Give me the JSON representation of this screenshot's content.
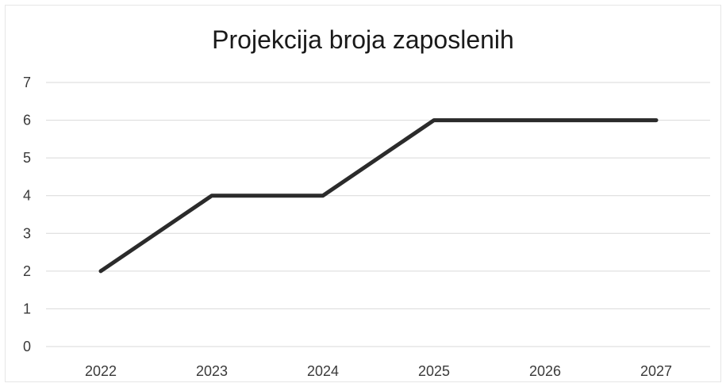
{
  "chart_data": {
    "type": "line",
    "title": "Projekcija broja zaposlenih",
    "xlabel": "",
    "ylabel": "",
    "categories": [
      "2022",
      "2023",
      "2024",
      "2025",
      "2026",
      "2027"
    ],
    "series": [
      {
        "values": [
          2,
          4,
          4,
          6,
          6,
          6
        ]
      }
    ],
    "ylim": [
      0,
      7
    ],
    "yticks": [
      0,
      1,
      2,
      3,
      4,
      5,
      6,
      7
    ],
    "grid": true,
    "legend": "none",
    "line_color": "#2b2b2b",
    "grid_color": "#d9d9d9"
  }
}
